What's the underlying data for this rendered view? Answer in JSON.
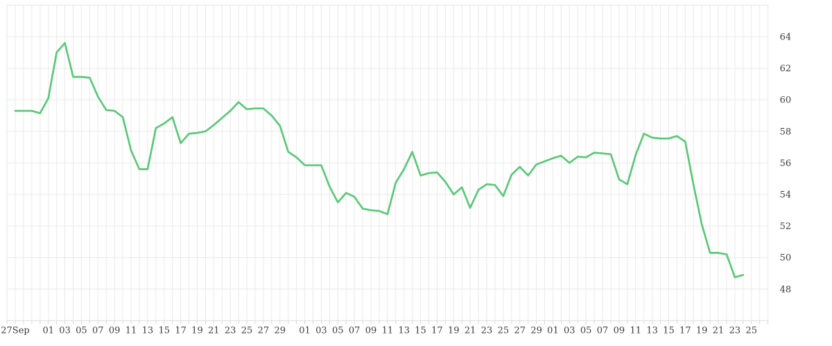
{
  "chart_data": {
    "type": "line",
    "title": "",
    "interval": "daily",
    "line_color": "#5ac878",
    "grid_color": "#e9e9e9",
    "frame_color": "#e0e0e0",
    "tick_color": "#d6d6d6",
    "label_color": "#3b3b3b",
    "y_axis_side": "right",
    "ylim": [
      46,
      66
    ],
    "y_ticks": [
      48,
      50,
      52,
      54,
      56,
      58,
      60,
      62,
      64
    ],
    "x_tick_labels": [
      {
        "label": "27Sep",
        "day": 0
      },
      {
        "label": "01",
        "day": 4
      },
      {
        "label": "03",
        "day": 6
      },
      {
        "label": "05",
        "day": 8
      },
      {
        "label": "07",
        "day": 10
      },
      {
        "label": "09",
        "day": 12
      },
      {
        "label": "11",
        "day": 14
      },
      {
        "label": "13",
        "day": 16
      },
      {
        "label": "15",
        "day": 18
      },
      {
        "label": "17",
        "day": 20
      },
      {
        "label": "19",
        "day": 22
      },
      {
        "label": "21",
        "day": 24
      },
      {
        "label": "23",
        "day": 26
      },
      {
        "label": "25",
        "day": 28
      },
      {
        "label": "27",
        "day": 30
      },
      {
        "label": "29",
        "day": 32
      },
      {
        "label": "01",
        "day": 35
      },
      {
        "label": "03",
        "day": 37
      },
      {
        "label": "05",
        "day": 39
      },
      {
        "label": "07",
        "day": 41
      },
      {
        "label": "09",
        "day": 43
      },
      {
        "label": "11",
        "day": 45
      },
      {
        "label": "13",
        "day": 47
      },
      {
        "label": "15",
        "day": 49
      },
      {
        "label": "17",
        "day": 51
      },
      {
        "label": "19",
        "day": 53
      },
      {
        "label": "21",
        "day": 55
      },
      {
        "label": "23",
        "day": 57
      },
      {
        "label": "25",
        "day": 59
      },
      {
        "label": "27",
        "day": 61
      },
      {
        "label": "29",
        "day": 63
      },
      {
        "label": "01",
        "day": 65
      },
      {
        "label": "03",
        "day": 67
      },
      {
        "label": "05",
        "day": 69
      },
      {
        "label": "07",
        "day": 71
      },
      {
        "label": "09",
        "day": 73
      },
      {
        "label": "11",
        "day": 75
      },
      {
        "label": "13",
        "day": 77
      },
      {
        "label": "15",
        "day": 79
      },
      {
        "label": "17",
        "day": 81
      },
      {
        "label": "19",
        "day": 83
      },
      {
        "label": "21",
        "day": 85
      },
      {
        "label": "23",
        "day": 87
      },
      {
        "label": "25",
        "day": 89
      }
    ],
    "points": [
      [
        "Sep27",
        59.3
      ],
      [
        "Sep28",
        59.3
      ],
      [
        "Sep29",
        59.3
      ],
      [
        "Sep30",
        59.15
      ],
      [
        "Oct01",
        60.1
      ],
      [
        "Oct02",
        63.0
      ],
      [
        "Oct03",
        63.6
      ],
      [
        "Oct04",
        61.45
      ],
      [
        "Oct05",
        61.45
      ],
      [
        "Oct06",
        61.4
      ],
      [
        "Oct07",
        60.2
      ],
      [
        "Oct08",
        59.35
      ],
      [
        "Oct09",
        59.3
      ],
      [
        "Oct10",
        58.9
      ],
      [
        "Oct11",
        56.8
      ],
      [
        "Oct12",
        55.6
      ],
      [
        "Oct13",
        55.6
      ],
      [
        "Oct14",
        58.2
      ],
      [
        "Oct15",
        58.5
      ],
      [
        "Oct16",
        58.9
      ],
      [
        "Oct17",
        57.25
      ],
      [
        "Oct18",
        57.85
      ],
      [
        "Oct19",
        57.9
      ],
      [
        "Oct20",
        58.0
      ],
      [
        "Oct21",
        58.4
      ],
      [
        "Oct22",
        58.85
      ],
      [
        "Oct23",
        59.3
      ],
      [
        "Oct24",
        59.85
      ],
      [
        "Oct25",
        59.4
      ],
      [
        "Oct26",
        59.45
      ],
      [
        "Oct27",
        59.45
      ],
      [
        "Oct28",
        59.0
      ],
      [
        "Oct29",
        58.35
      ],
      [
        "Oct30",
        56.7
      ],
      [
        "Oct31",
        56.35
      ],
      [
        "Nov01",
        55.85
      ],
      [
        "Nov02",
        55.85
      ],
      [
        "Nov03",
        55.85
      ],
      [
        "Nov04",
        54.5
      ],
      [
        "Nov05",
        53.5
      ],
      [
        "Nov06",
        54.1
      ],
      [
        "Nov07",
        53.85
      ],
      [
        "Nov08",
        53.1
      ],
      [
        "Nov09",
        53.0
      ],
      [
        "Nov10",
        52.95
      ],
      [
        "Nov11",
        52.75
      ],
      [
        "Nov12",
        54.75
      ],
      [
        "Nov13",
        55.6
      ],
      [
        "Nov14",
        56.7
      ],
      [
        "Nov15",
        55.2
      ],
      [
        "Nov16",
        55.35
      ],
      [
        "Nov17",
        55.4
      ],
      [
        "Nov18",
        54.8
      ],
      [
        "Nov19",
        54.0
      ],
      [
        "Nov20",
        54.45
      ],
      [
        "Nov21",
        53.15
      ],
      [
        "Nov22",
        54.3
      ],
      [
        "Nov23",
        54.65
      ],
      [
        "Nov24",
        54.6
      ],
      [
        "Nov25",
        53.9
      ],
      [
        "Nov26",
        55.25
      ],
      [
        "Nov27",
        55.75
      ],
      [
        "Nov28",
        55.2
      ],
      [
        "Nov29",
        55.9
      ],
      [
        "Nov30",
        56.1
      ],
      [
        "Dec01",
        56.3
      ],
      [
        "Dec02",
        56.45
      ],
      [
        "Dec03",
        56.0
      ],
      [
        "Dec04",
        56.4
      ],
      [
        "Dec05",
        56.35
      ],
      [
        "Dec06",
        56.65
      ],
      [
        "Dec07",
        56.6
      ],
      [
        "Dec08",
        56.55
      ],
      [
        "Dec09",
        54.95
      ],
      [
        "Dec10",
        54.65
      ],
      [
        "Dec11",
        56.5
      ],
      [
        "Dec12",
        57.85
      ],
      [
        "Dec13",
        57.6
      ],
      [
        "Dec14",
        57.55
      ],
      [
        "Dec15",
        57.55
      ],
      [
        "Dec16",
        57.7
      ],
      [
        "Dec17",
        57.35
      ],
      [
        "Dec18",
        54.6
      ],
      [
        "Dec19",
        52.1
      ],
      [
        "Dec20",
        50.3
      ],
      [
        "Dec21",
        50.3
      ],
      [
        "Dec22",
        50.2
      ],
      [
        "Dec23",
        48.75
      ],
      [
        "Dec24",
        48.9
      ]
    ]
  }
}
